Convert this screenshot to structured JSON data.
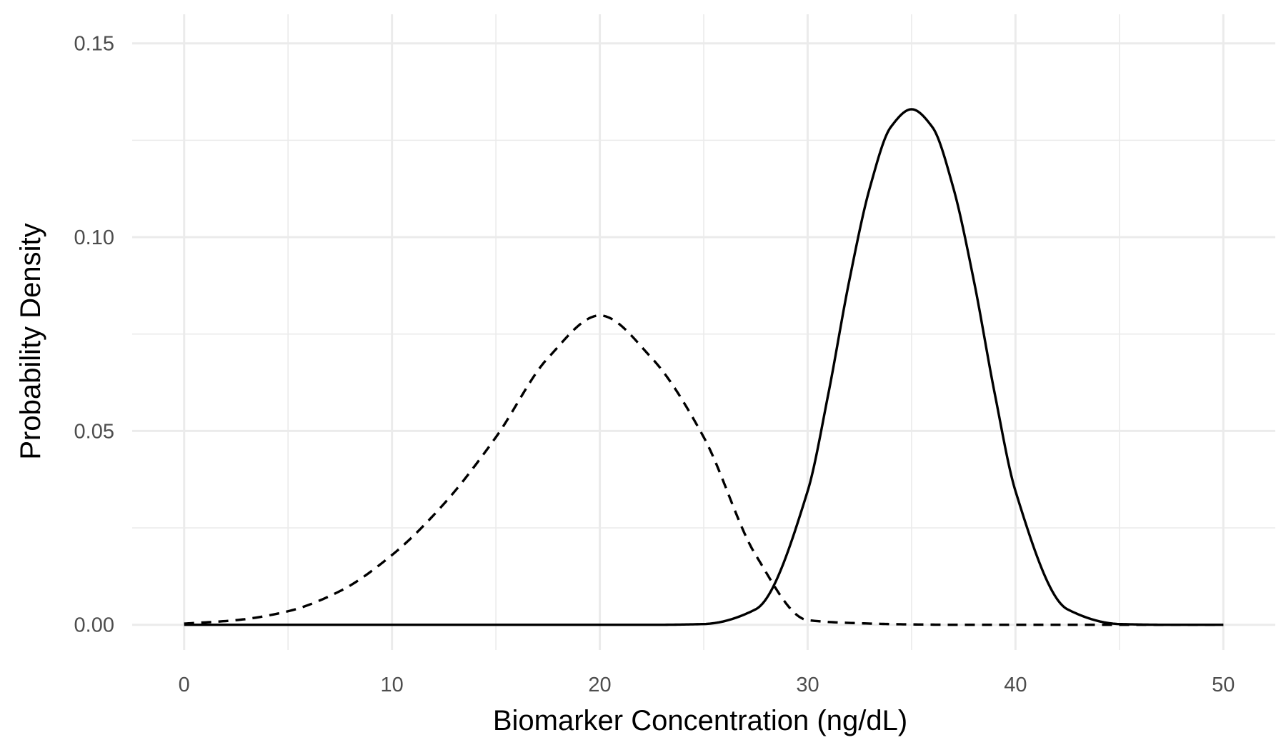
{
  "chart_data": {
    "type": "line",
    "title": "",
    "xlabel": "Biomarker Concentration (ng/dL)",
    "ylabel": "Probability Density",
    "xlim": [
      -2.5,
      52.5
    ],
    "ylim": [
      -0.0065,
      0.1575
    ],
    "x_ticks": [
      0,
      10,
      20,
      30,
      40,
      50
    ],
    "x_tick_labels": [
      "0",
      "10",
      "20",
      "30",
      "40",
      "50"
    ],
    "y_ticks": [
      0.0,
      0.05,
      0.1,
      0.15
    ],
    "y_tick_labels": [
      "0.00",
      "0.05",
      "0.10",
      "0.15"
    ],
    "grid": true,
    "legend": "none",
    "line_color": "#000000",
    "series": [
      {
        "linetype": "dashed",
        "x": [
          0,
          2.5,
          5,
          7.5,
          10,
          12.5,
          15,
          17.5,
          20,
          22.5,
          25,
          27.5,
          30,
          32.5,
          35,
          37.5,
          40,
          42.5,
          45,
          47.5,
          50
        ],
        "values": [
          0.0003,
          0.0012,
          0.0035,
          0.0087,
          0.018,
          0.0312,
          0.0484,
          0.0688,
          0.0798,
          0.0688,
          0.0484,
          0.018,
          0.0012,
          0.0004,
          0.0001,
          0.0,
          0.0,
          0.0,
          0.0,
          0.0,
          0.0
        ]
      },
      {
        "linetype": "solid",
        "x": [
          0,
          5,
          10,
          15,
          20,
          22.5,
          25,
          27.5,
          30,
          31,
          32,
          33,
          34,
          35,
          36,
          37,
          38,
          39,
          40,
          42.5,
          45,
          47.5,
          50
        ],
        "values": [
          0.0,
          0.0,
          0.0,
          0.0,
          0.0,
          0.0,
          0.0002,
          0.004,
          0.0345,
          0.0597,
          0.0887,
          0.1129,
          0.1284,
          0.133,
          0.1284,
          0.1129,
          0.0887,
          0.0597,
          0.0345,
          0.004,
          0.0002,
          0.0,
          0.0
        ]
      }
    ]
  }
}
